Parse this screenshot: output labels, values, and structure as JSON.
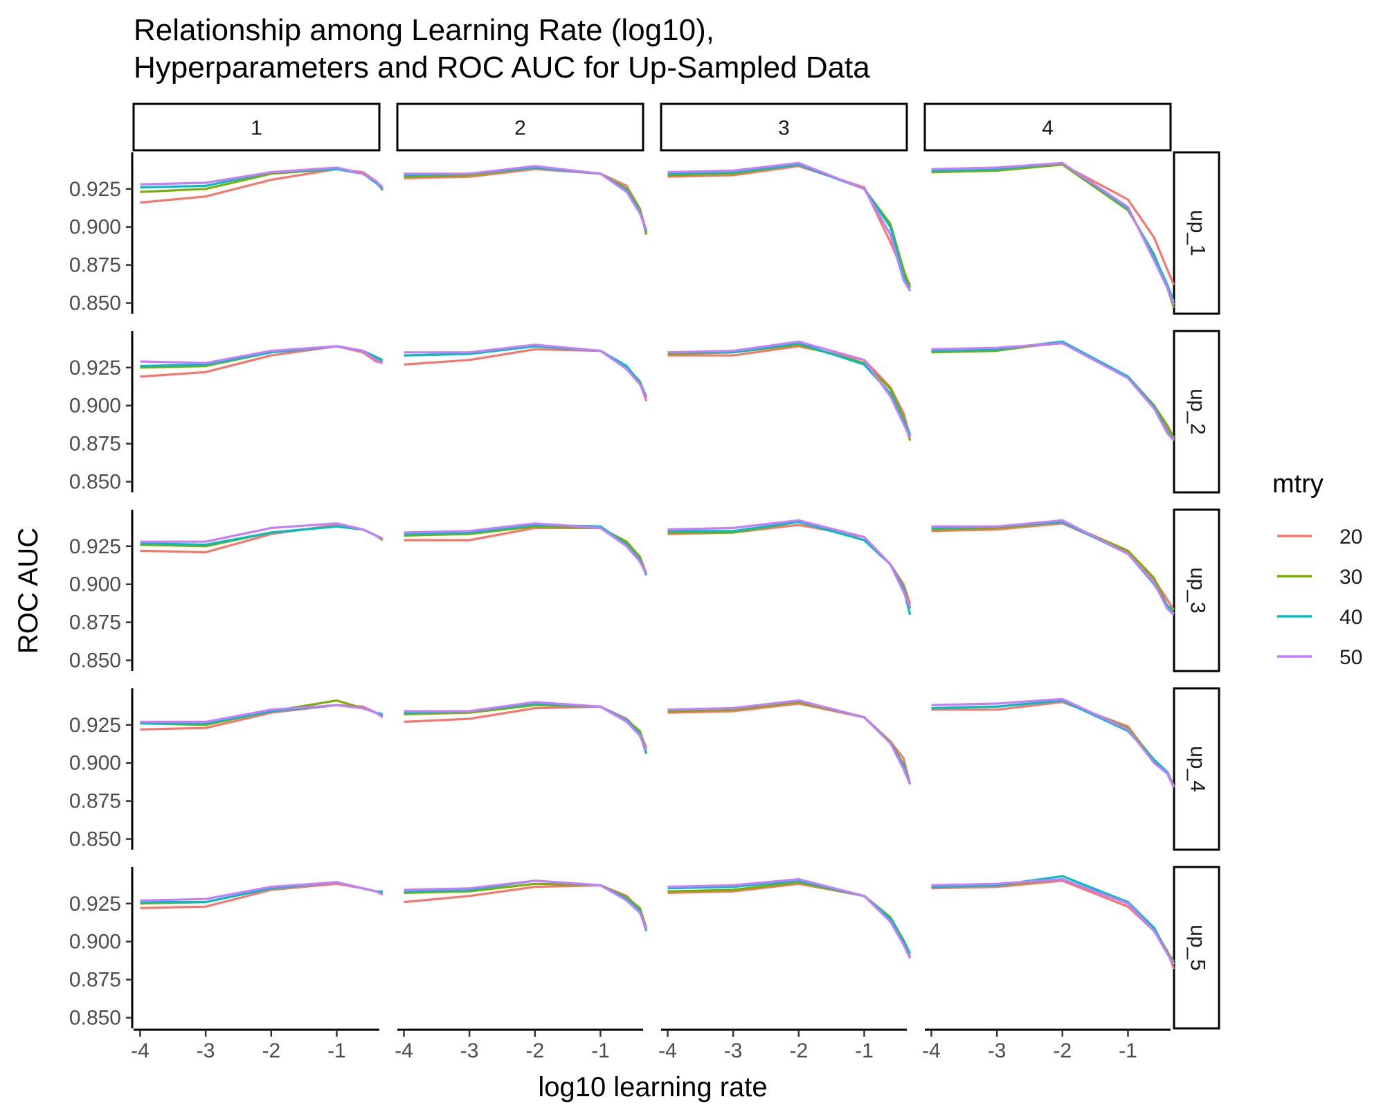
{
  "chart_data": {
    "type": "line",
    "title_lines": [
      "Relationship among Learning Rate (log10),",
      "Hyperparameters and ROC AUC for Up-Sampled Data"
    ],
    "xlabel": "log10 learning rate",
    "ylabel": "ROC AUC",
    "xlim": [
      -4.1,
      -0.35
    ],
    "ylim": [
      0.843,
      0.949
    ],
    "x_ticks": [
      -4,
      -3,
      -2,
      -1
    ],
    "x_tick_labels": [
      "-4",
      "-3",
      "-2",
      "-1"
    ],
    "y_ticks": [
      0.85,
      0.875,
      0.9,
      0.925
    ],
    "y_tick_labels": [
      "0.850",
      "0.875",
      "0.900",
      "0.925"
    ],
    "col_facets": [
      "1",
      "2",
      "3",
      "4"
    ],
    "row_facets": [
      "up_1",
      "up_2",
      "up_3",
      "up_4",
      "up_5"
    ],
    "x": [
      -4,
      -3,
      -2,
      -1,
      -0.6,
      -0.4,
      -0.3
    ],
    "legend": {
      "title": "mtry",
      "entries": [
        {
          "label": "20",
          "color": "#F8766D"
        },
        {
          "label": "30",
          "color": "#7CAE00"
        },
        {
          "label": "40",
          "color": "#00BFC4"
        },
        {
          "label": "50",
          "color": "#C77CFF"
        }
      ],
      "position": "right"
    },
    "panels": [
      [
        [
          [
            0.916,
            0.92,
            0.931,
            0.938,
            0.936,
            0.93,
            0.924
          ],
          [
            0.923,
            0.925,
            0.935,
            0.938,
            0.935,
            0.929,
            0.925
          ],
          [
            0.926,
            0.927,
            0.936,
            0.938,
            0.935,
            0.929,
            0.925
          ],
          [
            0.928,
            0.929,
            0.936,
            0.939,
            0.935,
            0.93,
            0.926
          ]
        ],
        [
          [
            0.932,
            0.933,
            0.938,
            0.935,
            0.927,
            0.912,
            0.897
          ],
          [
            0.933,
            0.934,
            0.939,
            0.935,
            0.925,
            0.912,
            0.895
          ],
          [
            0.934,
            0.935,
            0.939,
            0.935,
            0.924,
            0.91,
            0.897
          ],
          [
            0.935,
            0.935,
            0.94,
            0.935,
            0.923,
            0.909,
            0.898
          ]
        ],
        [
          [
            0.933,
            0.934,
            0.94,
            0.926,
            0.89,
            0.87,
            0.862
          ],
          [
            0.934,
            0.935,
            0.941,
            0.925,
            0.902,
            0.872,
            0.86
          ],
          [
            0.935,
            0.936,
            0.941,
            0.925,
            0.9,
            0.868,
            0.858
          ],
          [
            0.936,
            0.937,
            0.942,
            0.925,
            0.895,
            0.865,
            0.858
          ]
        ],
        [
          [
            0.936,
            0.937,
            0.941,
            0.918,
            0.893,
            0.872,
            0.862
          ],
          [
            0.936,
            0.937,
            0.941,
            0.911,
            0.882,
            0.86,
            0.847
          ],
          [
            0.937,
            0.938,
            0.942,
            0.912,
            0.881,
            0.862,
            0.851
          ],
          [
            0.938,
            0.939,
            0.942,
            0.913,
            0.878,
            0.86,
            0.849
          ]
        ]
      ],
      [
        [
          [
            0.919,
            0.922,
            0.933,
            0.939,
            0.935,
            0.929,
            0.928
          ],
          [
            0.925,
            0.926,
            0.935,
            0.939,
            0.936,
            0.931,
            0.929
          ],
          [
            0.926,
            0.927,
            0.935,
            0.939,
            0.936,
            0.932,
            0.93
          ],
          [
            0.929,
            0.928,
            0.936,
            0.939,
            0.936,
            0.93,
            0.928
          ]
        ],
        [
          [
            0.927,
            0.93,
            0.937,
            0.936,
            0.925,
            0.915,
            0.903
          ],
          [
            0.933,
            0.934,
            0.939,
            0.936,
            0.925,
            0.916,
            0.905
          ],
          [
            0.933,
            0.934,
            0.939,
            0.936,
            0.926,
            0.915,
            0.906
          ],
          [
            0.935,
            0.935,
            0.94,
            0.936,
            0.924,
            0.914,
            0.905
          ]
        ],
        [
          [
            0.933,
            0.933,
            0.939,
            0.93,
            0.912,
            0.895,
            0.88
          ],
          [
            0.934,
            0.935,
            0.94,
            0.928,
            0.911,
            0.892,
            0.877
          ],
          [
            0.935,
            0.935,
            0.941,
            0.927,
            0.908,
            0.89,
            0.881
          ],
          [
            0.935,
            0.936,
            0.942,
            0.93,
            0.906,
            0.888,
            0.879
          ]
        ],
        [
          [
            0.936,
            0.937,
            0.941,
            0.919,
            0.9,
            0.885,
            0.878
          ],
          [
            0.935,
            0.936,
            0.942,
            0.919,
            0.9,
            0.887,
            0.879
          ],
          [
            0.936,
            0.937,
            0.942,
            0.919,
            0.899,
            0.883,
            0.877
          ],
          [
            0.937,
            0.938,
            0.941,
            0.918,
            0.898,
            0.882,
            0.877
          ]
        ]
      ],
      [
        [
          [
            0.922,
            0.921,
            0.933,
            0.939,
            0.936,
            0.932,
            0.929
          ],
          [
            0.926,
            0.925,
            0.934,
            0.938,
            0.936,
            0.932,
            0.929
          ],
          [
            0.927,
            0.926,
            0.934,
            0.938,
            0.936,
            0.932,
            0.93
          ],
          [
            0.928,
            0.928,
            0.937,
            0.94,
            0.936,
            0.932,
            0.93
          ]
        ],
        [
          [
            0.929,
            0.929,
            0.937,
            0.937,
            0.927,
            0.918,
            0.907
          ],
          [
            0.932,
            0.933,
            0.938,
            0.937,
            0.928,
            0.918,
            0.907
          ],
          [
            0.933,
            0.934,
            0.939,
            0.938,
            0.926,
            0.916,
            0.906
          ],
          [
            0.934,
            0.935,
            0.94,
            0.937,
            0.925,
            0.915,
            0.907
          ]
        ],
        [
          [
            0.933,
            0.934,
            0.939,
            0.931,
            0.913,
            0.9,
            0.887
          ],
          [
            0.934,
            0.934,
            0.941,
            0.929,
            0.913,
            0.898,
            0.884
          ],
          [
            0.935,
            0.935,
            0.941,
            0.929,
            0.913,
            0.897,
            0.88
          ],
          [
            0.936,
            0.937,
            0.942,
            0.931,
            0.913,
            0.895,
            0.885
          ]
        ],
        [
          [
            0.935,
            0.936,
            0.94,
            0.921,
            0.903,
            0.89,
            0.883
          ],
          [
            0.936,
            0.937,
            0.941,
            0.922,
            0.904,
            0.886,
            0.883
          ],
          [
            0.937,
            0.938,
            0.941,
            0.92,
            0.9,
            0.886,
            0.881
          ],
          [
            0.938,
            0.938,
            0.942,
            0.92,
            0.901,
            0.884,
            0.88
          ]
        ]
      ],
      [
        [
          [
            0.922,
            0.923,
            0.933,
            0.938,
            0.937,
            0.933,
            0.931
          ],
          [
            0.926,
            0.925,
            0.934,
            0.941,
            0.936,
            0.933,
            0.931
          ],
          [
            0.926,
            0.926,
            0.934,
            0.938,
            0.936,
            0.933,
            0.932
          ],
          [
            0.927,
            0.927,
            0.935,
            0.938,
            0.936,
            0.933,
            0.93
          ]
        ],
        [
          [
            0.927,
            0.929,
            0.936,
            0.937,
            0.929,
            0.92,
            0.91
          ],
          [
            0.932,
            0.933,
            0.938,
            0.937,
            0.928,
            0.921,
            0.908
          ],
          [
            0.933,
            0.934,
            0.939,
            0.937,
            0.928,
            0.919,
            0.906
          ],
          [
            0.934,
            0.934,
            0.94,
            0.937,
            0.927,
            0.918,
            0.908
          ]
        ],
        [
          [
            0.933,
            0.934,
            0.939,
            0.93,
            0.914,
            0.903,
            0.886
          ],
          [
            0.934,
            0.935,
            0.94,
            0.93,
            0.914,
            0.899,
            0.886
          ],
          [
            0.935,
            0.936,
            0.941,
            0.93,
            0.913,
            0.898,
            0.886
          ],
          [
            0.935,
            0.936,
            0.941,
            0.93,
            0.913,
            0.896,
            0.886
          ]
        ],
        [
          [
            0.935,
            0.935,
            0.94,
            0.924,
            0.901,
            0.894,
            0.885
          ],
          [
            0.936,
            0.937,
            0.941,
            0.923,
            0.902,
            0.893,
            0.884
          ],
          [
            0.936,
            0.937,
            0.941,
            0.921,
            0.902,
            0.894,
            0.884
          ],
          [
            0.938,
            0.939,
            0.942,
            0.922,
            0.9,
            0.893,
            0.884
          ]
        ]
      ],
      [
        [
          [
            0.922,
            0.923,
            0.934,
            0.938,
            0.935,
            0.933,
            0.931
          ],
          [
            0.925,
            0.926,
            0.935,
            0.939,
            0.935,
            0.933,
            0.932
          ],
          [
            0.926,
            0.926,
            0.935,
            0.939,
            0.935,
            0.933,
            0.933
          ],
          [
            0.927,
            0.928,
            0.936,
            0.939,
            0.935,
            0.933,
            0.931
          ]
        ],
        [
          [
            0.926,
            0.93,
            0.936,
            0.937,
            0.93,
            0.921,
            0.907
          ],
          [
            0.932,
            0.933,
            0.938,
            0.937,
            0.929,
            0.922,
            0.909
          ],
          [
            0.933,
            0.934,
            0.94,
            0.937,
            0.928,
            0.92,
            0.907
          ],
          [
            0.934,
            0.935,
            0.94,
            0.937,
            0.927,
            0.919,
            0.908
          ]
        ],
        [
          [
            0.932,
            0.933,
            0.938,
            0.93,
            0.915,
            0.9,
            0.89
          ],
          [
            0.933,
            0.934,
            0.939,
            0.93,
            0.916,
            0.901,
            0.892
          ],
          [
            0.935,
            0.936,
            0.94,
            0.93,
            0.915,
            0.9,
            0.892
          ],
          [
            0.936,
            0.937,
            0.941,
            0.93,
            0.913,
            0.898,
            0.889
          ]
        ],
        [
          [
            0.935,
            0.936,
            0.94,
            0.923,
            0.907,
            0.894,
            0.882
          ],
          [
            0.936,
            0.937,
            0.941,
            0.925,
            0.909,
            0.893,
            0.887
          ],
          [
            0.936,
            0.937,
            0.943,
            0.926,
            0.909,
            0.892,
            0.886
          ],
          [
            0.937,
            0.938,
            0.941,
            0.925,
            0.907,
            0.892,
            0.885
          ]
        ]
      ]
    ]
  }
}
